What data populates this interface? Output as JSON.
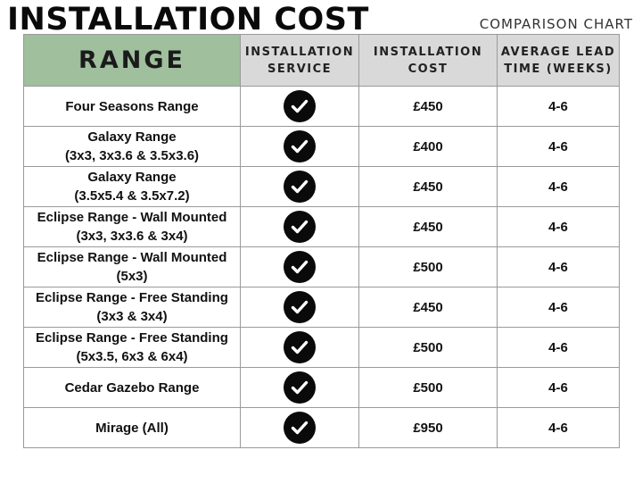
{
  "title": "INSTALLATION COST",
  "subtitle": "COMPARISON CHART",
  "headers": {
    "range": "RANGE",
    "service": "INSTALLATION SERVICE",
    "cost": "INSTALLATION COST",
    "lead": "AVERAGE LEAD TIME (WEEKS)"
  },
  "rows": [
    {
      "name": "Four Seasons Range",
      "sizes": "",
      "cost": "£450",
      "lead": "4-6",
      "service_icon": "check-circle-icon"
    },
    {
      "name": "Galaxy Range",
      "sizes": "(3x3, 3x3.6  &  3.5x3.6)",
      "cost": "£400",
      "lead": "4-6",
      "service_icon": "check-circle-icon"
    },
    {
      "name": "Galaxy Range",
      "sizes": "(3.5x5.4  &  3.5x7.2)",
      "cost": "£450",
      "lead": "4-6",
      "service_icon": "check-circle-icon"
    },
    {
      "name": "Eclipse Range - Wall Mounted",
      "sizes": "(3x3, 3x3.6  &  3x4)",
      "cost": "£450",
      "lead": "4-6",
      "service_icon": "check-circle-icon"
    },
    {
      "name": "Eclipse Range - Wall Mounted",
      "sizes": "(5x3)",
      "cost": "£500",
      "lead": "4-6",
      "service_icon": "check-circle-icon"
    },
    {
      "name": "Eclipse Range - Free Standing",
      "sizes": "(3x3 &  3x4)",
      "cost": "£450",
      "lead": "4-6",
      "service_icon": "check-circle-icon"
    },
    {
      "name": "Eclipse Range - Free Standing",
      "sizes": "(5x3.5, 6x3 & 6x4)",
      "cost": "£500",
      "lead": "4-6",
      "service_icon": "check-circle-icon"
    },
    {
      "name": "Cedar Gazebo Range",
      "sizes": "",
      "cost": "£500",
      "lead": "4-6",
      "service_icon": "check-circle-icon"
    },
    {
      "name": "Mirage (All)",
      "sizes": "",
      "cost": "£950",
      "lead": "4-6",
      "service_icon": "check-circle-icon"
    }
  ],
  "colors": {
    "range_header_bg": "#9fbf9d",
    "header_bg": "#d9d9d9",
    "check_bg": "#0a0a0a"
  }
}
